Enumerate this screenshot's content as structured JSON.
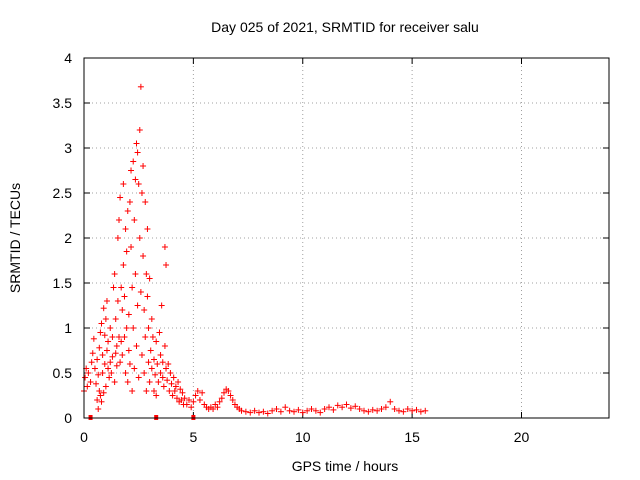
{
  "chart_data": {
    "type": "scatter",
    "title": "Day 025 of 2021, SRMTID for receiver salu",
    "xlabel": "GPS time / hours",
    "ylabel": "SRMTID / TECUs",
    "xlim": [
      0,
      24
    ],
    "ylim": [
      0,
      4
    ],
    "xticks": [
      0,
      5,
      10,
      15,
      20
    ],
    "yticks": [
      0,
      0.5,
      1,
      1.5,
      2,
      2.5,
      3,
      3.5,
      4
    ],
    "xtick_labels": [
      "0",
      "5",
      "10",
      "15",
      "20"
    ],
    "ytick_labels": [
      "0",
      "0.5",
      "1",
      "1.5",
      "2",
      "2.5",
      "3",
      "3.5",
      "4"
    ],
    "grid": true,
    "marker": "+",
    "color": "#ff0000",
    "series": [
      {
        "name": "SRMTID",
        "points": [
          [
            0.0,
            0.3
          ],
          [
            0.05,
            0.45
          ],
          [
            0.1,
            0.55
          ],
          [
            0.15,
            0.35
          ],
          [
            0.2,
            0.5
          ],
          [
            0.3,
            0.4
          ],
          [
            0.35,
            0.62
          ],
          [
            0.4,
            0.72
          ],
          [
            0.45,
            0.88
          ],
          [
            0.5,
            0.55
          ],
          [
            0.55,
            0.38
          ],
          [
            0.6,
            0.2
          ],
          [
            0.6,
            0.65
          ],
          [
            0.65,
            0.1
          ],
          [
            0.65,
            0.48
          ],
          [
            0.7,
            0.3
          ],
          [
            0.7,
            0.78
          ],
          [
            0.75,
            0.25
          ],
          [
            0.75,
            0.95
          ],
          [
            0.8,
            0.18
          ],
          [
            0.8,
            1.05
          ],
          [
            0.85,
            0.5
          ],
          [
            0.85,
            0.7
          ],
          [
            0.9,
            0.28
          ],
          [
            0.9,
            1.22
          ],
          [
            0.95,
            0.6
          ],
          [
            0.95,
            0.92
          ],
          [
            1.0,
            0.35
          ],
          [
            1.0,
            1.1
          ],
          [
            1.05,
            0.75
          ],
          [
            1.05,
            1.3
          ],
          [
            1.1,
            0.55
          ],
          [
            1.1,
            0.85
          ],
          [
            1.15,
            0.45
          ],
          [
            1.2,
            1.0
          ],
          [
            1.2,
            0.62
          ],
          [
            1.25,
            0.5
          ],
          [
            1.3,
            0.9
          ],
          [
            1.3,
            0.68
          ],
          [
            1.35,
            1.45
          ],
          [
            1.4,
            0.4
          ],
          [
            1.4,
            1.6
          ],
          [
            1.45,
            0.72
          ],
          [
            1.45,
            1.1
          ],
          [
            1.5,
            0.58
          ],
          [
            1.5,
            0.8
          ],
          [
            1.55,
            2.0
          ],
          [
            1.55,
            1.3
          ],
          [
            1.6,
            0.9
          ],
          [
            1.6,
            2.2
          ],
          [
            1.65,
            0.62
          ],
          [
            1.65,
            2.45
          ],
          [
            1.7,
            1.45
          ],
          [
            1.7,
            0.85
          ],
          [
            1.75,
            1.2
          ],
          [
            1.75,
            0.7
          ],
          [
            1.8,
            2.6
          ],
          [
            1.8,
            1.7
          ],
          [
            1.85,
            0.9
          ],
          [
            1.85,
            1.35
          ],
          [
            1.9,
            2.1
          ],
          [
            1.9,
            0.5
          ],
          [
            1.95,
            1.0
          ],
          [
            1.95,
            1.85
          ],
          [
            2.0,
            0.4
          ],
          [
            2.0,
            2.3
          ],
          [
            2.05,
            0.75
          ],
          [
            2.05,
            1.15
          ],
          [
            2.1,
            2.4
          ],
          [
            2.1,
            0.6
          ],
          [
            2.15,
            2.75
          ],
          [
            2.15,
            1.9
          ],
          [
            2.2,
            0.3
          ],
          [
            2.2,
            1.45
          ],
          [
            2.25,
            2.85
          ],
          [
            2.25,
            1.0
          ],
          [
            2.3,
            2.2
          ],
          [
            2.3,
            0.55
          ],
          [
            2.35,
            2.65
          ],
          [
            2.35,
            1.6
          ],
          [
            2.4,
            3.05
          ],
          [
            2.4,
            0.8
          ],
          [
            2.45,
            2.95
          ],
          [
            2.45,
            1.25
          ],
          [
            2.5,
            2.6
          ],
          [
            2.5,
            0.45
          ],
          [
            2.55,
            3.2
          ],
          [
            2.55,
            2.0
          ],
          [
            2.6,
            3.68
          ],
          [
            2.6,
            1.4
          ],
          [
            2.65,
            2.5
          ],
          [
            2.65,
            0.7
          ],
          [
            2.7,
            2.8
          ],
          [
            2.7,
            1.8
          ],
          [
            2.75,
            0.5
          ],
          [
            2.75,
            1.2
          ],
          [
            2.8,
            2.4
          ],
          [
            2.8,
            0.9
          ],
          [
            2.85,
            1.6
          ],
          [
            2.85,
            0.3
          ],
          [
            2.9,
            1.35
          ],
          [
            2.9,
            2.1
          ],
          [
            2.95,
            0.62
          ],
          [
            2.95,
            1.0
          ],
          [
            3.0,
            1.55
          ],
          [
            3.0,
            0.4
          ],
          [
            3.05,
            0.75
          ],
          [
            3.1,
            1.1
          ],
          [
            3.1,
            0.55
          ],
          [
            3.15,
            0.9
          ],
          [
            3.2,
            0.3
          ],
          [
            3.2,
            0.65
          ],
          [
            3.25,
            0.48
          ],
          [
            3.3,
            0.85
          ],
          [
            3.3,
            0.25
          ],
          [
            3.35,
            0.6
          ],
          [
            3.4,
            0.4
          ],
          [
            3.45,
            0.95
          ],
          [
            3.5,
            0.5
          ],
          [
            3.5,
            0.7
          ],
          [
            3.55,
            1.25
          ],
          [
            3.6,
            0.45
          ],
          [
            3.6,
            0.62
          ],
          [
            3.65,
            0.35
          ],
          [
            3.7,
            1.9
          ],
          [
            3.7,
            0.8
          ],
          [
            3.75,
            1.7
          ],
          [
            3.75,
            0.55
          ],
          [
            3.8,
            0.42
          ],
          [
            3.85,
            0.6
          ],
          [
            3.9,
            0.3
          ],
          [
            3.95,
            0.5
          ],
          [
            4.0,
            0.38
          ],
          [
            4.05,
            0.25
          ],
          [
            4.1,
            0.45
          ],
          [
            4.15,
            0.3
          ],
          [
            4.2,
            0.35
          ],
          [
            4.25,
            0.22
          ],
          [
            4.3,
            0.4
          ],
          [
            4.35,
            0.18
          ],
          [
            4.4,
            0.32
          ],
          [
            4.45,
            0.2
          ],
          [
            4.5,
            0.28
          ],
          [
            4.55,
            0.15
          ],
          [
            4.6,
            0.22
          ],
          [
            4.7,
            0.15
          ],
          [
            4.8,
            0.2
          ],
          [
            4.9,
            0.12
          ],
          [
            5.0,
            0.18
          ],
          [
            5.1,
            0.25
          ],
          [
            5.2,
            0.3
          ],
          [
            5.3,
            0.2
          ],
          [
            5.4,
            0.28
          ],
          [
            5.5,
            0.15
          ],
          [
            5.6,
            0.12
          ],
          [
            5.7,
            0.1
          ],
          [
            5.8,
            0.12
          ],
          [
            5.9,
            0.1
          ],
          [
            6.0,
            0.15
          ],
          [
            6.1,
            0.12
          ],
          [
            6.2,
            0.18
          ],
          [
            6.3,
            0.22
          ],
          [
            6.4,
            0.28
          ],
          [
            6.5,
            0.32
          ],
          [
            6.6,
            0.3
          ],
          [
            6.7,
            0.25
          ],
          [
            6.8,
            0.2
          ],
          [
            6.9,
            0.15
          ],
          [
            7.0,
            0.12
          ],
          [
            7.1,
            0.1
          ],
          [
            7.2,
            0.08
          ],
          [
            7.4,
            0.07
          ],
          [
            7.6,
            0.06
          ],
          [
            7.8,
            0.08
          ],
          [
            8.0,
            0.06
          ],
          [
            8.2,
            0.07
          ],
          [
            8.4,
            0.05
          ],
          [
            8.6,
            0.08
          ],
          [
            8.8,
            0.1
          ],
          [
            9.0,
            0.07
          ],
          [
            9.2,
            0.12
          ],
          [
            9.4,
            0.08
          ],
          [
            9.6,
            0.07
          ],
          [
            9.8,
            0.09
          ],
          [
            10.0,
            0.06
          ],
          [
            10.2,
            0.08
          ],
          [
            10.4,
            0.1
          ],
          [
            10.6,
            0.08
          ],
          [
            10.8,
            0.06
          ],
          [
            11.0,
            0.1
          ],
          [
            11.2,
            0.12
          ],
          [
            11.4,
            0.09
          ],
          [
            11.6,
            0.14
          ],
          [
            11.8,
            0.12
          ],
          [
            12.0,
            0.15
          ],
          [
            12.2,
            0.11
          ],
          [
            12.4,
            0.13
          ],
          [
            12.6,
            0.1
          ],
          [
            12.8,
            0.08
          ],
          [
            13.0,
            0.07
          ],
          [
            13.2,
            0.09
          ],
          [
            13.4,
            0.08
          ],
          [
            13.6,
            0.1
          ],
          [
            13.8,
            0.12
          ],
          [
            14.0,
            0.18
          ],
          [
            14.2,
            0.1
          ],
          [
            14.4,
            0.08
          ],
          [
            14.6,
            0.07
          ],
          [
            14.8,
            0.1
          ],
          [
            15.0,
            0.08
          ],
          [
            15.2,
            0.09
          ],
          [
            15.4,
            0.07
          ],
          [
            15.6,
            0.08
          ]
        ]
      }
    ],
    "bottom_markers": [
      0.3,
      3.3,
      5.0
    ]
  }
}
